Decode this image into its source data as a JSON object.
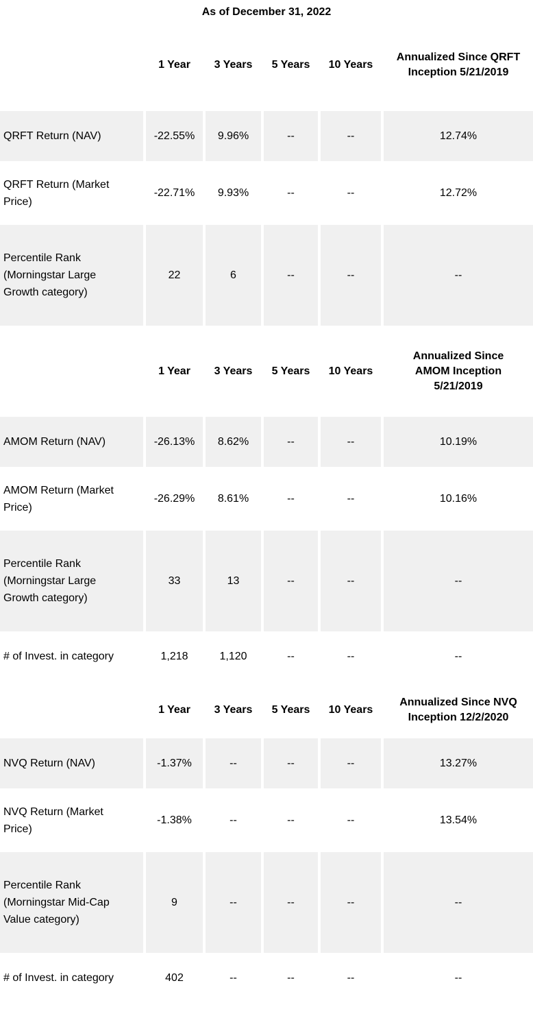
{
  "title": "As of December 31, 2022",
  "tables": [
    {
      "id": "qrft",
      "period_headers": [
        "1 Year",
        "3 Years",
        "5 Years",
        "10 Years"
      ],
      "annualized_header": "Annualized Since QRFT\nInception 5/21/2019",
      "rows": [
        {
          "label": "QRFT Return (NAV)",
          "values": [
            "-22.55%",
            "9.96%",
            "--",
            "--",
            "12.74%"
          ],
          "shaded": true
        },
        {
          "label": "QRFT Return (Market\nPrice)",
          "values": [
            "-22.71%",
            "9.93%",
            "--",
            "--",
            "12.72%"
          ],
          "shaded": false
        },
        {
          "label": "Percentile Rank\n(Morningstar Large\nGrowth category)",
          "values": [
            "22",
            "6",
            "--",
            "--",
            "--"
          ],
          "shaded": true
        }
      ]
    },
    {
      "id": "amom",
      "period_headers": [
        "1 Year",
        "3 Years",
        "5 Years",
        "10 Years"
      ],
      "annualized_header": "Annualized Since\nAMOM Inception\n5/21/2019",
      "rows": [
        {
          "label": "AMOM Return (NAV)",
          "values": [
            "-26.13%",
            "8.62%",
            "--",
            "--",
            "10.19%"
          ],
          "shaded": true
        },
        {
          "label": "AMOM Return (Market\nPrice)",
          "values": [
            "-26.29%",
            "8.61%",
            "--",
            "--",
            "10.16%"
          ],
          "shaded": false
        },
        {
          "label": "Percentile Rank\n(Morningstar Large\nGrowth category)",
          "values": [
            "33",
            "13",
            "--",
            "--",
            "--"
          ],
          "shaded": true
        },
        {
          "label": "# of Invest. in category",
          "values": [
            "1,218",
            "1,120",
            "--",
            "--",
            "--"
          ],
          "shaded": false
        }
      ]
    },
    {
      "id": "nvq",
      "period_headers": [
        "1 Year",
        "3 Years",
        "5 Years",
        "10 Years"
      ],
      "annualized_header": "Annualized Since NVQ\nInception 12/2/2020",
      "rows": [
        {
          "label": "NVQ Return (NAV)",
          "values": [
            "-1.37%",
            "--",
            "--",
            "--",
            "13.27%"
          ],
          "shaded": true
        },
        {
          "label": "NVQ Return (Market\nPrice)",
          "values": [
            "-1.38%",
            "--",
            "--",
            "--",
            "13.54%"
          ],
          "shaded": false
        },
        {
          "label": "Percentile Rank\n(Morningstar Mid-Cap\nValue category)",
          "values": [
            "9",
            "--",
            "--",
            "--",
            "--"
          ],
          "shaded": true
        },
        {
          "label": "# of Invest. in category",
          "values": [
            "402",
            "--",
            "--",
            "--",
            "--"
          ],
          "shaded": false
        }
      ]
    }
  ]
}
